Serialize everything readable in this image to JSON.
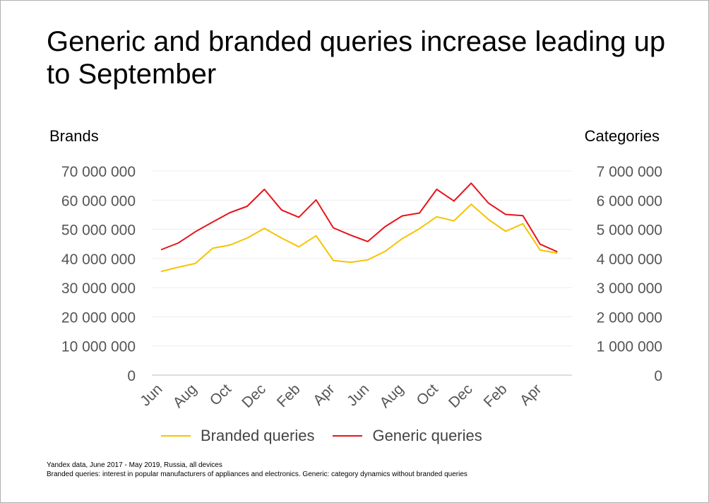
{
  "chart_data": {
    "type": "line",
    "title": "Generic and branded queries increase leading up to September",
    "ylabel_left": "Brands",
    "ylabel_right": "Categories",
    "ylim_left": [
      0,
      70000000
    ],
    "ylim_right": [
      0,
      7000000
    ],
    "left_ticks": [
      "0",
      "10 000 000",
      "20 000 000",
      "30 000 000",
      "40 000 000",
      "50 000 000",
      "60 000 000",
      "70 000 000"
    ],
    "right_ticks": [
      "0",
      "1 000 000",
      "2 000 000",
      "3 000 000",
      "4 000 000",
      "5 000 000",
      "6 000 000",
      "7 000 000"
    ],
    "x_tick_labels": [
      "Jun",
      "Aug",
      "Oct",
      "Dec",
      "Feb",
      "Apr",
      "Jun",
      "Aug",
      "Oct",
      "Dec",
      "Feb",
      "Apr"
    ],
    "n_points": 24,
    "series": [
      {
        "name": "Branded queries",
        "axis": "left",
        "color": "#f5c400",
        "values": [
          35500000,
          37000000,
          38300000,
          43500000,
          44600000,
          47000000,
          50300000,
          47000000,
          44000000,
          47800000,
          39300000,
          38700000,
          39500000,
          42400000,
          46800000,
          50200000,
          54300000,
          52900000,
          58600000,
          53400000,
          49300000,
          51900000,
          42900000,
          41800000
        ]
      },
      {
        "name": "Generic queries",
        "axis": "right",
        "color": "#e8141b",
        "values": [
          4300000,
          4530000,
          4920000,
          5250000,
          5570000,
          5790000,
          6370000,
          5660000,
          5410000,
          6010000,
          5050000,
          4800000,
          4580000,
          5090000,
          5460000,
          5560000,
          6370000,
          5970000,
          6580000,
          5900000,
          5510000,
          5470000,
          4490000,
          4230000
        ]
      }
    ]
  },
  "footer": {
    "line1": "Yandex data, June 2017 - May 2019, Russia, all devices",
    "line2": "Branded queries: interest in popular manufacturers of appliances and electronics. Generic: category dynamics without branded queries"
  }
}
